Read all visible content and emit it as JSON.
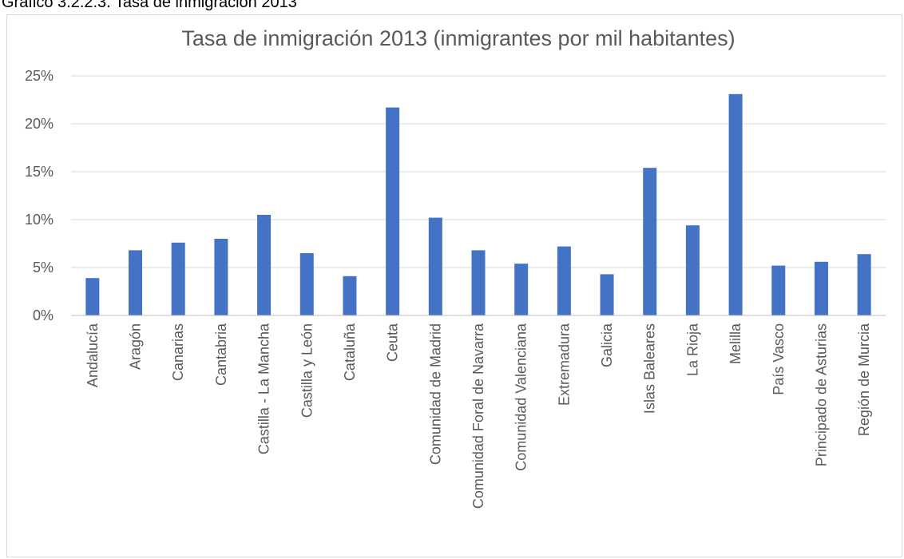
{
  "document": {
    "caption": "Gráfico 3.2.2.3. Tasa de inmigración 2013"
  },
  "colors": {
    "bar": "#4472C4",
    "grid": "#d9d9d9",
    "axis": "#bfbfbf",
    "text": "#595959"
  },
  "chart_data": {
    "type": "bar",
    "title": "Tasa de inmigración 2013 (inmigrantes por mil habitantes)",
    "xlabel": "",
    "ylabel": "",
    "ylim": [
      0,
      25
    ],
    "yticks": [
      "0%",
      "5%",
      "10%",
      "15%",
      "20%",
      "25%"
    ],
    "grid": true,
    "legend": "none",
    "categories": [
      "Andalucía",
      "Aragón",
      "Canarias",
      "Cantabria",
      "Castilla - La Mancha",
      "Castilla y León",
      "Cataluña",
      "Ceuta",
      "Comunidad de Madrid",
      "Comunidad Foral de Navarra",
      "Comunidad Valenciana",
      "Extremadura",
      "Galicia",
      "Islas Baleares",
      "La Rioja",
      "Melilla",
      "País Vasco",
      "Principado de Asturias",
      "Región de Murcia"
    ],
    "values": [
      3.9,
      6.8,
      7.6,
      8.0,
      10.5,
      6.5,
      4.1,
      21.7,
      10.2,
      6.8,
      5.4,
      7.2,
      4.3,
      15.4,
      9.4,
      23.1,
      5.2,
      5.6,
      6.4
    ]
  }
}
